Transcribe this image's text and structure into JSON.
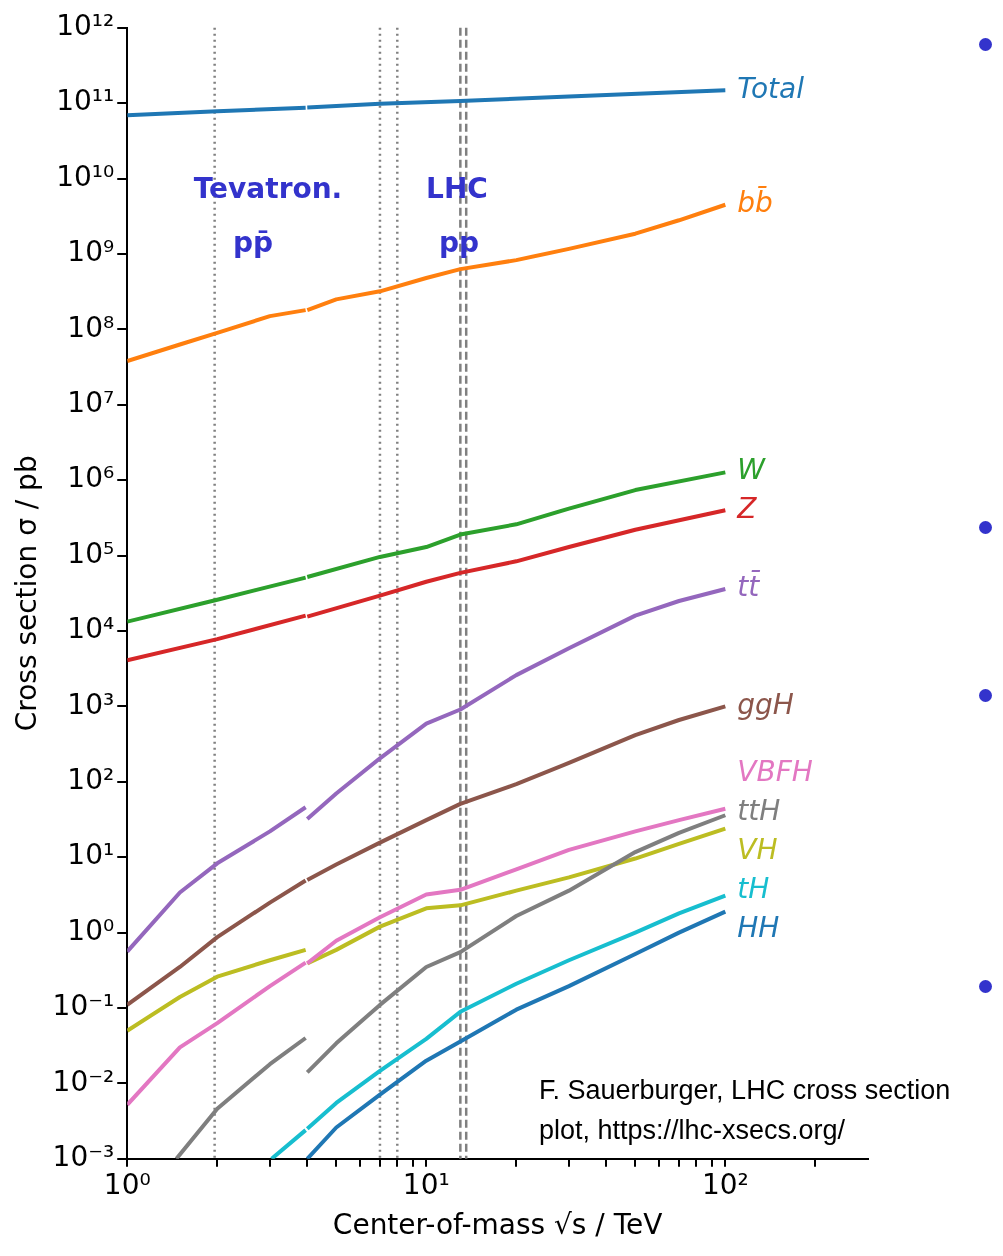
{
  "chart_data": {
    "type": "line",
    "xlabel": "Center-of-mass √s / TeV",
    "ylabel": "Cross section σ / pb",
    "log": "xy",
    "grid": false,
    "legend": false,
    "marker": "none",
    "line_style": "solid",
    "xlim": [
      1,
      300
    ],
    "ylim": [
      0.001,
      1000000000000
    ],
    "xticks": [
      {
        "value": 1,
        "label": "10⁰"
      },
      {
        "value": 2,
        "label": null
      },
      {
        "value": 3,
        "label": null
      },
      {
        "value": 4,
        "label": null
      },
      {
        "value": 5,
        "label": null
      },
      {
        "value": 6,
        "label": null
      },
      {
        "value": 7,
        "label": null
      },
      {
        "value": 8,
        "label": null
      },
      {
        "value": 9,
        "label": null
      },
      {
        "value": 10,
        "label": "10¹"
      },
      {
        "value": 20,
        "label": null
      },
      {
        "value": 30,
        "label": null
      },
      {
        "value": 40,
        "label": null
      },
      {
        "value": 50,
        "label": null
      },
      {
        "value": 60,
        "label": null
      },
      {
        "value": 70,
        "label": null
      },
      {
        "value": 80,
        "label": null
      },
      {
        "value": 90,
        "label": null
      },
      {
        "value": 100,
        "label": "10²"
      },
      {
        "value": 200,
        "label": null
      }
    ],
    "yticks": [
      {
        "value": 0.001,
        "label": "10⁻³"
      },
      {
        "value": 0.01,
        "label": "10⁻²"
      },
      {
        "value": 0.1,
        "label": "10⁻¹"
      },
      {
        "value": 1,
        "label": "10⁰"
      },
      {
        "value": 10,
        "label": "10¹"
      },
      {
        "value": 100,
        "label": "10²"
      },
      {
        "value": 1000,
        "label": "10³"
      },
      {
        "value": 10000,
        "label": "10⁴"
      },
      {
        "value": 100000,
        "label": "10⁵"
      },
      {
        "value": 1000000,
        "label": "10⁶"
      },
      {
        "value": 10000000,
        "label": "10⁷"
      },
      {
        "value": 100000000,
        "label": "10⁸"
      },
      {
        "value": 1000000000,
        "label": "10⁹"
      },
      {
        "value": 10000000000,
        "label": "10¹⁰"
      },
      {
        "value": 100000000000,
        "label": "10¹¹"
      },
      {
        "value": 1000000000000,
        "label": "10¹²"
      }
    ],
    "x": [
      1,
      1.5,
      2,
      3,
      3.95,
      3.97,
      4,
      5,
      7,
      10,
      13,
      20,
      30,
      50,
      70,
      100
    ],
    "series": [
      {
        "name": "Total",
        "color": "#1f77b4",
        "x": [
          1,
          2,
          3.95,
          3.97,
          4,
          7,
          13,
          30,
          100
        ],
        "values": [
          69000000000,
          78000000000,
          87000000000,
          null,
          88000000000,
          98000000000,
          107000000000,
          123000000000,
          148000000000
        ]
      },
      {
        "name": "bb̄",
        "color": "#ff7f0e",
        "values": [
          38000000,
          63000000,
          90000000,
          150000000,
          180000000,
          null,
          180000000,
          250000000,
          320000000,
          480000000,
          630000000,
          830000000,
          1170000000,
          1860000000,
          2800000000,
          4500000000
        ]
      },
      {
        "name": "W",
        "color": "#2ca02c",
        "x": [
          1,
          2,
          3.95,
          3.97,
          4,
          7,
          10,
          13,
          20,
          30,
          50,
          100
        ],
        "values": [
          13300,
          26000,
          51000,
          null,
          52000,
          96000,
          130000,
          190000,
          260000,
          420000,
          740000,
          1270000
        ]
      },
      {
        "name": "Z",
        "color": "#d62728",
        "x": [
          1,
          2,
          3.95,
          3.97,
          4,
          7,
          10,
          13,
          20,
          30,
          50,
          100
        ],
        "values": [
          4100,
          7800,
          16000,
          null,
          15500,
          29500,
          45000,
          59000,
          84000,
          130000,
          220000,
          400000
        ]
      },
      {
        "name": "tt̄",
        "color": "#9467bd",
        "values": [
          0.56,
          3.4,
          8.3,
          22,
          46,
          null,
          32,
          70,
          205,
          590,
          910,
          2600,
          5900,
          16000,
          25000,
          36000
        ]
      },
      {
        "name": "ggH",
        "color": "#8c564b",
        "values": [
          0.11,
          0.35,
          0.87,
          2.5,
          4.9,
          null,
          5,
          8,
          15.6,
          31,
          51,
          93,
          178,
          415,
          660,
          1000
        ]
      },
      {
        "name": "VBFH",
        "color": "#e377c2",
        "values": [
          0.0052,
          0.03,
          0.063,
          0.195,
          0.4,
          null,
          0.39,
          0.78,
          1.6,
          3.2,
          3.7,
          6.9,
          12.5,
          22,
          31,
          44
        ]
      },
      {
        "name": "ttH",
        "color": "#7f7f7f",
        "x": [
          1.46,
          2,
          3,
          3.95,
          3.97,
          4,
          5,
          7,
          10,
          13,
          20,
          30,
          50,
          70,
          100
        ],
        "values": [
          0.001,
          0.0046,
          0.018,
          0.04,
          null,
          0.014,
          0.034,
          0.11,
          0.35,
          0.55,
          1.66,
          3.6,
          11.7,
          21,
          36
        ]
      },
      {
        "name": "VH",
        "color": "#bcbd22",
        "values": [
          0.05,
          0.14,
          0.26,
          0.43,
          0.59,
          null,
          0.39,
          0.59,
          1.2,
          2.1,
          2.3,
          3.6,
          5.4,
          9.6,
          15,
          24
        ]
      },
      {
        "name": "tH",
        "color": "#17becf",
        "x": [
          3.04,
          3.95,
          3.97,
          4,
          5,
          7,
          10,
          13,
          20,
          30,
          50,
          70,
          100
        ],
        "values": [
          0.001,
          0.0024,
          null,
          0.0025,
          0.0055,
          0.0147,
          0.039,
          0.089,
          0.21,
          0.43,
          1.0,
          1.8,
          3.1
        ]
      },
      {
        "name": "HH",
        "color": "#1f77b4",
        "x": [
          4,
          5,
          7,
          10,
          13,
          20,
          30,
          50,
          70,
          100
        ],
        "values": [
          0.001,
          0.0026,
          0.0071,
          0.02,
          0.036,
          0.095,
          0.195,
          0.52,
          1.0,
          1.9
        ]
      }
    ],
    "ref_lines": [
      {
        "axis": "x",
        "value": 1.96,
        "color": "#808080",
        "line_style": "dotted"
      },
      {
        "axis": "x",
        "value": 7,
        "color": "#808080",
        "line_style": "dotted"
      },
      {
        "axis": "x",
        "value": 8,
        "color": "#808080",
        "line_style": "dotted"
      },
      {
        "axis": "x",
        "value": 13,
        "color": "#808080",
        "line_style": "dashed"
      },
      {
        "axis": "x",
        "value": 13.6,
        "color": "#808080",
        "line_style": "dashed"
      }
    ],
    "annotations": [
      "Tevatron.",
      "pp̄",
      "LHC",
      "pp",
      "F. Sauerburger, LHC cross section plot, https://lhc-xsecs.org/"
    ]
  }
}
